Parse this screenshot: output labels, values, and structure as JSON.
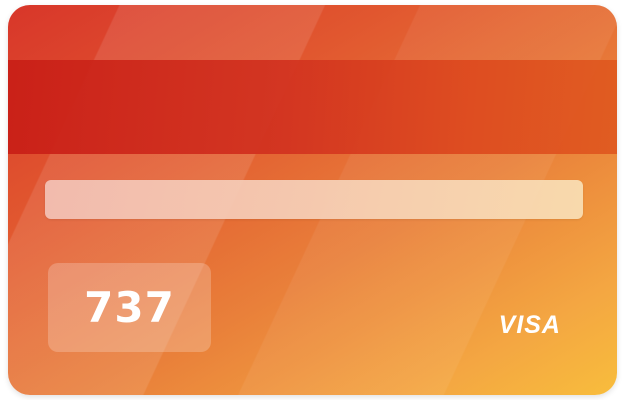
{
  "card": {
    "side": "back",
    "cvv": "737",
    "brand": "VISA",
    "colors": {
      "gradient_start": "#d8362a",
      "gradient_end": "#f8bd3c",
      "stripe": "#c91f17",
      "text": "#ffffff"
    }
  }
}
